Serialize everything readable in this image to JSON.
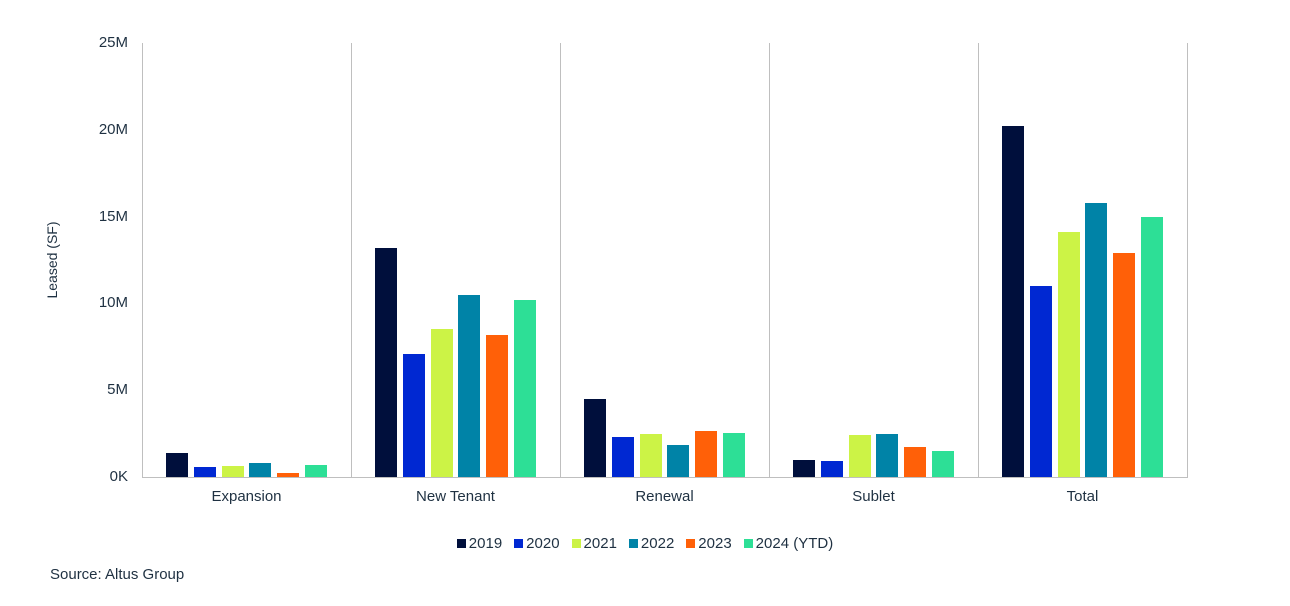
{
  "chart_data": {
    "type": "bar",
    "title": "",
    "xlabel": "",
    "ylabel": "Leased (SF)",
    "ylim": [
      0,
      25000000
    ],
    "yticks": [
      "0K",
      "5M",
      "10M",
      "15M",
      "20M",
      "25M"
    ],
    "ytick_values": [
      0,
      5000000,
      10000000,
      15000000,
      20000000,
      25000000
    ],
    "grid": false,
    "legend_position": "bottom",
    "categories": [
      "Expansion",
      "New Tenant",
      "Renewal",
      "Sublet",
      "Total"
    ],
    "series": [
      {
        "name": "2019",
        "color": "#000f3c",
        "values": [
          1400000,
          13200000,
          4500000,
          1000000,
          20200000
        ]
      },
      {
        "name": "2020",
        "color": "#0028d2",
        "values": [
          600000,
          7100000,
          2300000,
          900000,
          11000000
        ]
      },
      {
        "name": "2021",
        "color": "#ccf346",
        "values": [
          650000,
          8500000,
          2500000,
          2400000,
          14100000
        ]
      },
      {
        "name": "2022",
        "color": "#0083a7",
        "values": [
          800000,
          10500000,
          1850000,
          2500000,
          15800000
        ]
      },
      {
        "name": "2023",
        "color": "#ff6008",
        "values": [
          250000,
          8200000,
          2650000,
          1750000,
          12900000
        ]
      },
      {
        "name": "2024 (YTD)",
        "color": "#2ddf96",
        "values": [
          700000,
          10200000,
          2550000,
          1500000,
          15000000
        ]
      }
    ]
  },
  "footer": {
    "source": "Source: Altus Group"
  }
}
